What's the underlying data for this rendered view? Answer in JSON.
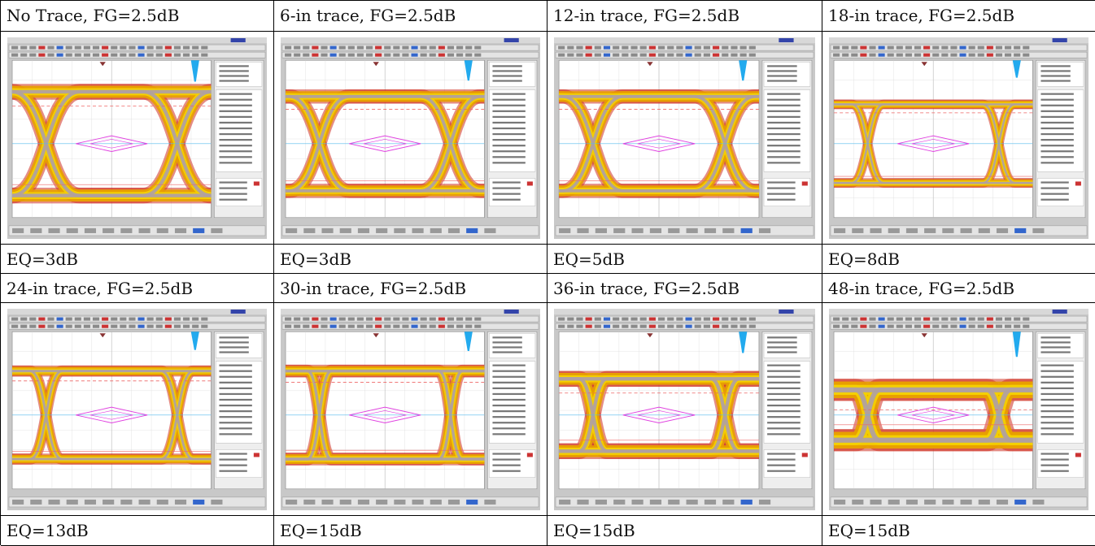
{
  "panels": [
    {
      "title": "No Trace, FG=2.5dB",
      "eq": "EQ=3dB",
      "eye": {
        "opening": 0.66,
        "crossing": 0.17,
        "thickness": 0.1
      }
    },
    {
      "title": "6-in trace, FG=2.5dB",
      "eq": "EQ=3dB",
      "eye": {
        "opening": 0.6,
        "crossing": 0.15,
        "thickness": 0.09
      }
    },
    {
      "title": "12-in trace, FG=2.5dB",
      "eq": "EQ=5dB",
      "eye": {
        "opening": 0.6,
        "crossing": 0.15,
        "thickness": 0.09
      }
    },
    {
      "title": "18-in trace, FG=2.5dB",
      "eq": "EQ=8dB",
      "eye": {
        "opening": 0.5,
        "crossing": 0.08,
        "thickness": 0.06
      }
    },
    {
      "title": "24-in trace, FG=2.5dB",
      "eq": "EQ=13dB",
      "eye": {
        "opening": 0.56,
        "crossing": 0.08,
        "thickness": 0.07
      }
    },
    {
      "title": "30-in trace, FG=2.5dB",
      "eq": "EQ=15dB",
      "eye": {
        "opening": 0.56,
        "crossing": 0.06,
        "thickness": 0.08
      }
    },
    {
      "title": "36-in trace, FG=2.5dB",
      "eq": "EQ=15dB",
      "eye": {
        "opening": 0.46,
        "crossing": 0.07,
        "thickness": 0.1
      }
    },
    {
      "title": "48-in trace, FG=2.5dB",
      "eq": "EQ=15dB",
      "eye": {
        "opening": 0.32,
        "crossing": 0.06,
        "thickness": 0.14
      }
    }
  ],
  "colors": {
    "eye_hot": "#e8a000",
    "eye_warm": "#f4d000",
    "eye_trace": "#b0a0a0",
    "eye_red": "#d03020",
    "mask": "#e040e0",
    "histogram": "#22aaee",
    "marker": "#ee6666",
    "screen_bg": "#ffffff",
    "chrome": "#c8c8c8",
    "titlebar": "#d8d8d8"
  }
}
